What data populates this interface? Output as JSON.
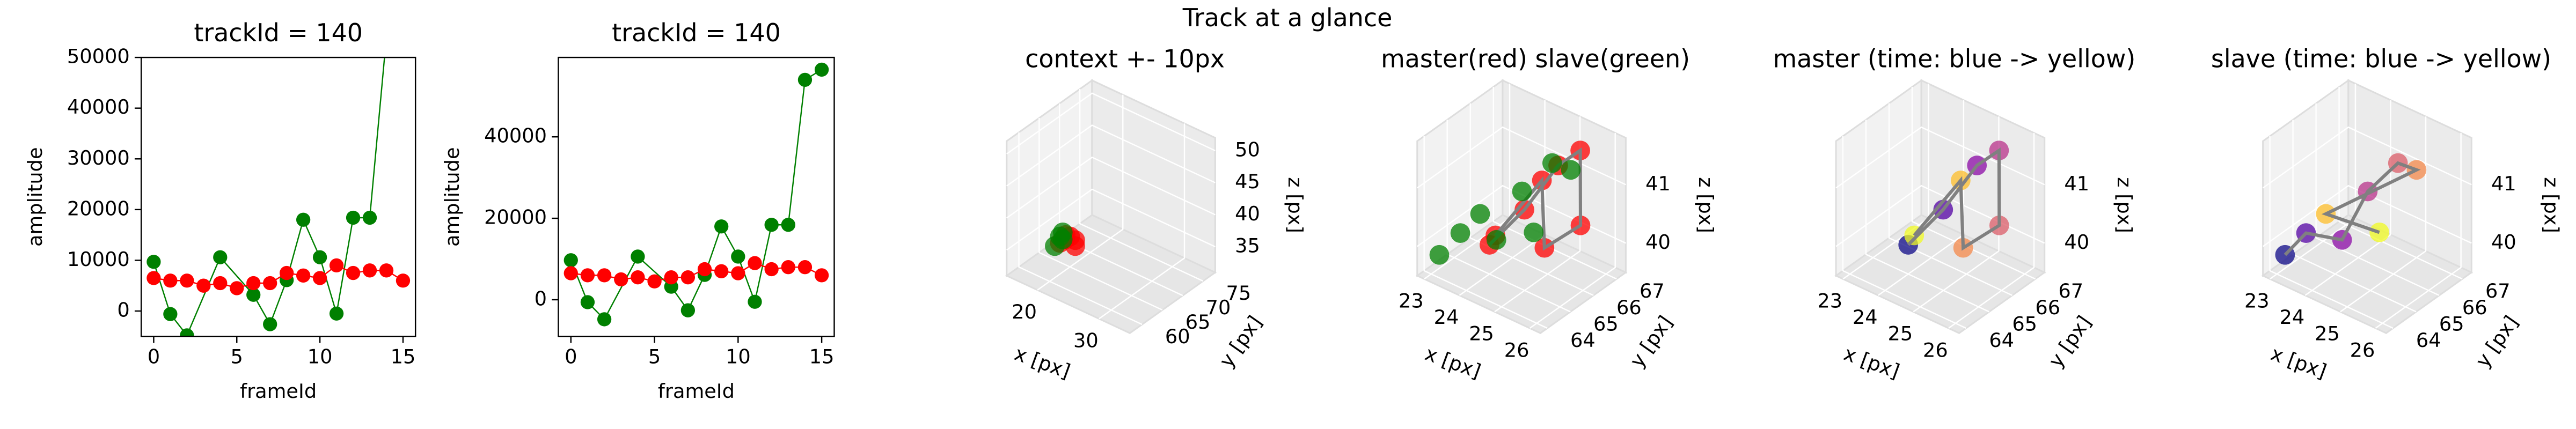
{
  "title": "Track at a glance",
  "chart_data": [
    {
      "type": "line",
      "title": "trackId = 140",
      "xlabel": "frameId",
      "ylabel": "amplitude",
      "xlim": [
        -0.75,
        15.75
      ],
      "xticks": [
        0,
        5,
        10,
        15
      ],
      "ylim": [
        -5000,
        50000
      ],
      "yticks": [
        0,
        10000,
        20000,
        30000,
        40000,
        50000
      ],
      "series": [
        {
          "color": "#008000",
          "x": [
            0,
            1,
            2,
            4,
            6,
            7,
            8,
            9,
            10,
            11,
            12,
            13,
            14,
            15
          ],
          "values": [
            9700,
            -600,
            -4800,
            10600,
            3200,
            -2600,
            6100,
            18000,
            10600,
            -500,
            18400,
            18400,
            54000,
            56500
          ]
        },
        {
          "color": "#ff0000",
          "x": [
            0,
            1,
            2,
            3,
            4,
            5,
            6,
            7,
            8,
            9,
            10,
            11,
            12,
            13,
            14,
            15
          ],
          "values": [
            6500,
            6000,
            6000,
            5000,
            5500,
            4500,
            5500,
            5500,
            7500,
            7000,
            6500,
            9000,
            7500,
            8000,
            8000,
            6000
          ]
        }
      ]
    },
    {
      "type": "line",
      "title": "trackId = 140",
      "xlabel": "frameId",
      "ylabel": "amplitude",
      "xlim": [
        -0.75,
        15.75
      ],
      "xticks": [
        0,
        5,
        10,
        15
      ],
      "ylim": [
        -9000,
        59500
      ],
      "yticks": [
        0,
        20000,
        40000
      ],
      "series": [
        {
          "color": "#008000",
          "x": [
            0,
            1,
            2,
            4,
            6,
            7,
            8,
            9,
            10,
            11,
            12,
            13,
            14,
            15
          ],
          "values": [
            9700,
            -600,
            -4800,
            10600,
            3200,
            -2600,
            6100,
            18000,
            10600,
            -500,
            18400,
            18400,
            54000,
            56500
          ]
        },
        {
          "color": "#ff0000",
          "x": [
            0,
            1,
            2,
            3,
            4,
            5,
            6,
            7,
            8,
            9,
            10,
            11,
            12,
            13,
            14,
            15
          ],
          "values": [
            6500,
            6000,
            6000,
            5000,
            5500,
            4500,
            5500,
            5500,
            7500,
            7000,
            6500,
            9000,
            7500,
            8000,
            8000,
            6000
          ]
        }
      ]
    },
    {
      "type": "scatter3d",
      "title": "context +- 10px",
      "xlabel": "x [px]",
      "ylabel": "y [px]",
      "zlabel": "z [px]",
      "xlim": [
        15,
        35
      ],
      "xticks": [
        20,
        30
      ],
      "ylim": [
        57,
        78
      ],
      "yticks": [
        60,
        65,
        70,
        75
      ],
      "zlim": [
        31,
        52
      ],
      "zticks": [
        35,
        40,
        45,
        50
      ],
      "series": [
        {
          "color": "#ff0000",
          "x": [
            21,
            21.5,
            22,
            22.5,
            21.8,
            22.3
          ],
          "y": [
            61,
            61.5,
            62,
            62.5,
            61.2,
            62.8
          ],
          "z": [
            37,
            37.5,
            38,
            36.5,
            38.5,
            37.2
          ]
        },
        {
          "color": "#008000",
          "x": [
            20.5,
            21,
            20.8,
            21.6
          ],
          "y": [
            60.5,
            61,
            62,
            60.8
          ],
          "z": [
            36.5,
            38,
            37,
            39
          ]
        }
      ]
    },
    {
      "type": "scatter3d",
      "title": "master(red) slave(green)",
      "xlabel": "x [px]",
      "ylabel": "y [px]",
      "zlabel": "z [px]",
      "xlim": [
        22.8,
        26.3
      ],
      "xticks": [
        23,
        24,
        25,
        26
      ],
      "ylim": [
        63.7,
        67.4
      ],
      "yticks": [
        64,
        65,
        66,
        67
      ],
      "zlim": [
        39.5,
        41.8
      ],
      "zticks": [
        40,
        41
      ],
      "line_color": "#808080",
      "series": [
        {
          "color": "#ff0000",
          "line": true,
          "x": [
            24.0,
            24.6,
            25.1,
            25.4,
            25.8,
            25.3,
            24.9,
            24.3
          ],
          "y": [
            65.0,
            65.6,
            66.3,
            66.8,
            66.2,
            65.4,
            65.9,
            64.8
          ],
          "z": [
            40.0,
            40.6,
            41.3,
            41.5,
            40.5,
            40.2,
            41.1,
            40.3
          ]
        },
        {
          "color": "#008000",
          "x": [
            23.1,
            23.5,
            24.0,
            24.4,
            24.8,
            25.0,
            23.8,
            24.6
          ],
          "y": [
            64.2,
            64.5,
            65.3,
            65.8,
            66.5,
            67.0,
            64.9,
            66.0
          ],
          "z": [
            39.8,
            40.2,
            40.0,
            40.8,
            41.2,
            41.0,
            40.5,
            40.1
          ]
        }
      ]
    },
    {
      "type": "scatter3d",
      "title": "master (time: blue -> yellow)",
      "xlabel": "x [px]",
      "ylabel": "y [px]",
      "zlabel": "z [px]",
      "xlim": [
        22.8,
        26.3
      ],
      "xticks": [
        23,
        24,
        25,
        26
      ],
      "ylim": [
        63.7,
        67.4
      ],
      "yticks": [
        64,
        65,
        66,
        67
      ],
      "zlim": [
        39.5,
        41.8
      ],
      "zticks": [
        40,
        41
      ],
      "line_color": "#808080",
      "series": [
        {
          "colors": [
            "#0d0887",
            "#5302a3",
            "#8b0aa5",
            "#b83289",
            "#db5c68",
            "#f48849",
            "#febd2a",
            "#f0f921"
          ],
          "line": true,
          "x": [
            24.0,
            24.6,
            25.1,
            25.4,
            25.8,
            25.3,
            24.9,
            24.3
          ],
          "y": [
            65.0,
            65.6,
            66.3,
            66.8,
            66.2,
            65.4,
            65.9,
            64.8
          ],
          "z": [
            40.0,
            40.6,
            41.3,
            41.5,
            40.5,
            40.2,
            41.1,
            40.3
          ]
        }
      ]
    },
    {
      "type": "scatter3d",
      "title": "slave (time: blue -> yellow)",
      "xlabel": "x [px]",
      "ylabel": "y [px]",
      "zlabel": "z [px]",
      "xlim": [
        22.8,
        26.3
      ],
      "xticks": [
        23,
        24,
        25,
        26
      ],
      "ylim": [
        63.7,
        67.4
      ],
      "yticks": [
        64,
        65,
        66,
        67
      ],
      "zlim": [
        39.5,
        41.8
      ],
      "zticks": [
        40,
        41
      ],
      "line_color": "#808080",
      "series": [
        {
          "colors": [
            "#0d0887",
            "#5302a3",
            "#8b0aa5",
            "#b83289",
            "#db5c68",
            "#f48849",
            "#febd2a",
            "#f0f921"
          ],
          "line": true,
          "x": [
            23.1,
            23.5,
            24.0,
            24.4,
            24.8,
            25.0,
            23.8,
            24.6
          ],
          "y": [
            64.2,
            64.5,
            65.3,
            65.8,
            66.5,
            67.0,
            64.9,
            66.0
          ],
          "z": [
            39.8,
            40.2,
            40.0,
            40.8,
            41.2,
            41.0,
            40.5,
            40.1
          ]
        }
      ]
    }
  ]
}
